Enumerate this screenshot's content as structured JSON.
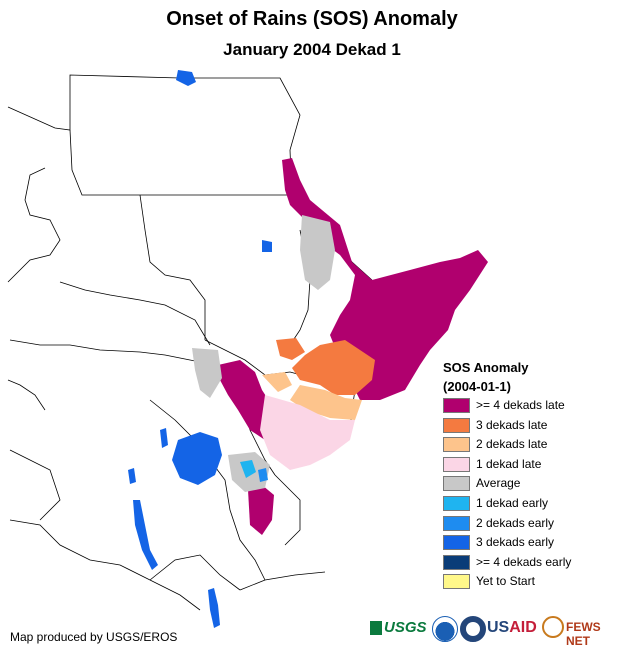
{
  "header": {
    "title": "Onset of Rains (SOS) Anomaly",
    "subtitle": "January 2004 Dekad 1"
  },
  "legend": {
    "title": "SOS Anomaly",
    "date": "(2004-01-1)",
    "items": [
      {
        "label": ">= 4 dekads late",
        "color": "#b0006e"
      },
      {
        "label": "3 dekads late",
        "color": "#f47a40"
      },
      {
        "label": "2 dekads late",
        "color": "#fdc48c"
      },
      {
        "label": "1 dekad late",
        "color": "#fbd6e6"
      },
      {
        "label": "Average",
        "color": "#c8c8c8"
      },
      {
        "label": "1 dekad early",
        "color": "#1fb4f0"
      },
      {
        "label": "2 dekads early",
        "color": "#1e8cf0"
      },
      {
        "label": "3 dekads early",
        "color": "#1464e6"
      },
      {
        "label": ">= 4 dekads early",
        "color": "#0a3c78"
      },
      {
        "label": "Yet to Start",
        "color": "#fff88a"
      }
    ]
  },
  "credit": "Map produced by USGS/EROS",
  "logos": {
    "usgs": "USGS",
    "usaid_prefix": "US",
    "usaid_suffix": "AID",
    "fews": "FEWS NET"
  },
  "colors": {
    "water": "#1464e6",
    "land": "#ffffff",
    "border": "#000000"
  }
}
